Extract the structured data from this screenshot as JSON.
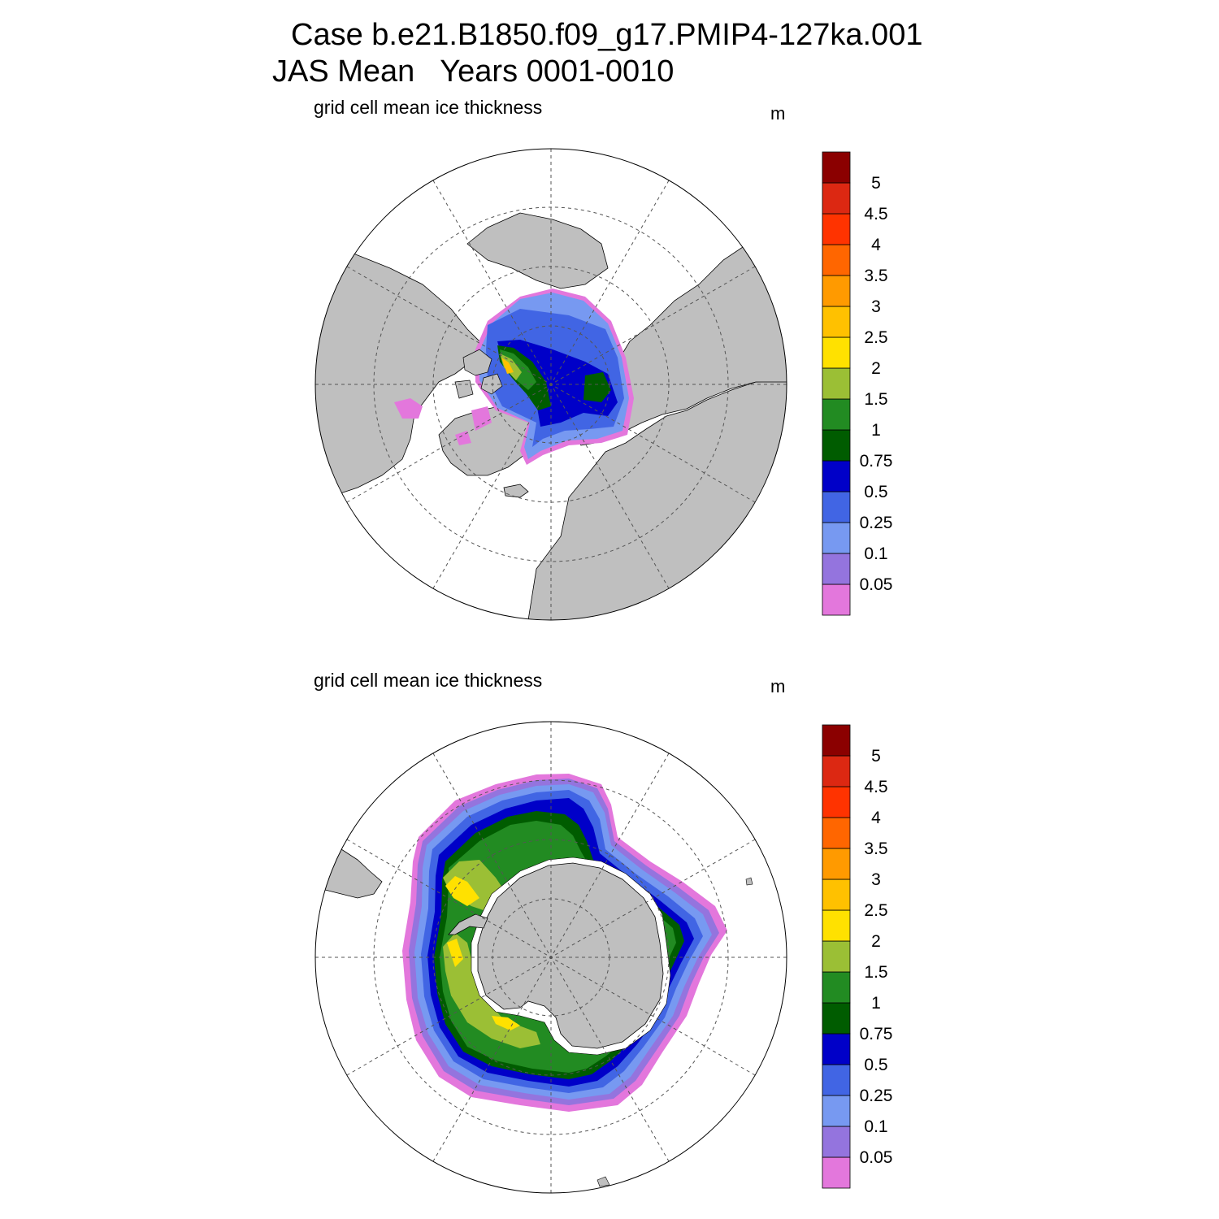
{
  "title": {
    "line1": "Case b.e21.B1850.f09_g17.PMIP4-127ka.001",
    "line2": "JAS Mean   Years 0001-0010"
  },
  "panels": [
    {
      "id": "north",
      "hemisphere": "Northern Hemisphere",
      "label": "grid cell mean ice thickness",
      "units": "m"
    },
    {
      "id": "south",
      "hemisphere": "Southern Hemisphere",
      "label": "grid cell mean ice thickness",
      "units": "m"
    }
  ],
  "colorbar": {
    "labels": [
      "0.05",
      "0.1",
      "0.25",
      "0.5",
      "0.75",
      "1",
      "1.5",
      "2",
      "2.5",
      "3",
      "3.5",
      "4",
      "4.5",
      "5"
    ],
    "colors": [
      "#e377dc",
      "#9474de",
      "#7799f1",
      "#4165e4",
      "#0000c8",
      "#005c00",
      "#228b22",
      "#9bbf35",
      "#ffe100",
      "#ffc100",
      "#ff9a00",
      "#ff6600",
      "#ff3300",
      "#dc2812",
      "#8b0000"
    ]
  },
  "map_colors": {
    "land": "#bfbfbf",
    "ocean": "#ffffff",
    "coast": "#000000",
    "grid": "#555555"
  }
}
